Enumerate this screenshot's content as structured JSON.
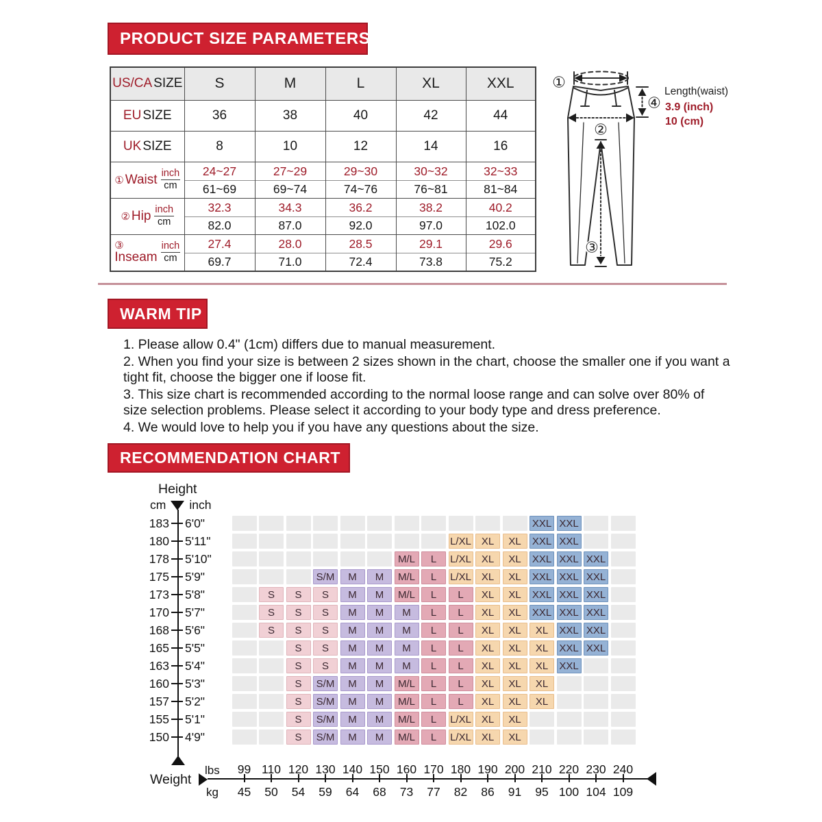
{
  "colors": {
    "banner_red": "#ce2130",
    "banner_border": "#a21623",
    "accent_red": "#9e1b28",
    "header_bg": "#e9e9e9",
    "empty_cell": "#eaeaea",
    "divider": "#c48f98"
  },
  "section1": {
    "title": "PRODUCT SIZE PARAMETERS"
  },
  "size_table": {
    "header": {
      "prefix": "US/CA",
      "word": "SIZE",
      "columns": [
        "S",
        "M",
        "L",
        "XL",
        "XXL"
      ]
    },
    "simple_rows": [
      {
        "prefix": "EU",
        "word": "SIZE",
        "values": [
          "36",
          "38",
          "40",
          "42",
          "44"
        ]
      },
      {
        "prefix": "UK",
        "word": "SIZE",
        "values": [
          "8",
          "10",
          "12",
          "14",
          "16"
        ]
      }
    ],
    "measure_rows": [
      {
        "num": "①",
        "name": "Waist",
        "stacked": false,
        "unit_top": "inch",
        "unit_bottom": "cm",
        "inch": [
          "24~27",
          "27~29",
          "29~30",
          "30~32",
          "32~33"
        ],
        "cm": [
          "61~69",
          "69~74",
          "74~76",
          "76~81",
          "81~84"
        ]
      },
      {
        "num": "②",
        "name": "Hip",
        "stacked": false,
        "unit_top": "inch",
        "unit_bottom": "cm",
        "inch": [
          "32.3",
          "34.3",
          "36.2",
          "38.2",
          "40.2"
        ],
        "cm": [
          "82.0",
          "87.0",
          "92.0",
          "97.0",
          "102.0"
        ]
      },
      {
        "num": "③",
        "name": "Inseam",
        "stacked": true,
        "unit_top": "inch",
        "unit_bottom": "cm",
        "inch": [
          "27.4",
          "28.0",
          "28.5",
          "29.1",
          "29.6"
        ],
        "cm": [
          "69.7",
          "71.0",
          "72.4",
          "73.8",
          "75.2"
        ]
      }
    ]
  },
  "diagram": {
    "markers": [
      "①",
      "②",
      "③",
      "④"
    ],
    "legend": {
      "title": "Length(waist)",
      "inch": "3.9 (inch)",
      "cm": "10 (cm)"
    }
  },
  "warm_tip": {
    "title": "WARM TIP",
    "items": [
      "1. Please allow 0.4\" (1cm) differs due to manual measurement.",
      "2. When you find your size is between 2 sizes shown in the chart, choose the smaller one if you want a tight fit, choose the bigger one if loose fit.",
      "3. This size chart is recommended according to the normal loose range and can solve over 80% of size selection problems. Please select it according to your body type and dress preference.",
      "4. We would love to help you if you have any questions about the size."
    ]
  },
  "recommendation": {
    "title": "RECOMMENDATION CHART",
    "height_label": "Height",
    "cm_label": "cm",
    "inch_label": "inch",
    "weight_label": "Weight",
    "lbs_label": "lbs",
    "kg_label": "kg",
    "weights_lbs": [
      "99",
      "110",
      "120",
      "130",
      "140",
      "150",
      "160",
      "170",
      "180",
      "190",
      "200",
      "210",
      "220",
      "230",
      "240"
    ],
    "weights_kg": [
      "45",
      "50",
      "54",
      "59",
      "64",
      "68",
      "73",
      "77",
      "82",
      "86",
      "91",
      "95",
      "100",
      "104",
      "109"
    ],
    "size_colors": {
      "S": {
        "bg": "#f1d0d5",
        "border": "#e0b4ba"
      },
      "S/M": {
        "bg": "#c6bbdf",
        "border": "#a898cc"
      },
      "M": {
        "bg": "#c6bbdf",
        "border": "#a898cc"
      },
      "M/L": {
        "bg": "#e3a9b5",
        "border": "#cf8c9b"
      },
      "L": {
        "bg": "#e3a9b5",
        "border": "#cf8c9b"
      },
      "L/XL": {
        "bg": "#f6d7ae",
        "border": "#e9bd8c"
      },
      "XL": {
        "bg": "#f6d7ae",
        "border": "#e9bd8c"
      },
      "XXL": {
        "bg": "#95b2d5",
        "border": "#6e92bc"
      }
    },
    "rows": [
      {
        "cm": "183",
        "inch": "6'0\"",
        "cells": {
          "210": "XXL",
          "220": "XXL"
        }
      },
      {
        "cm": "180",
        "inch": "5'11\"",
        "cells": {
          "180": "L/XL",
          "190": "XL",
          "200": "XL",
          "210": "XXL",
          "220": "XXL"
        }
      },
      {
        "cm": "178",
        "inch": "5'10\"",
        "cells": {
          "160": "M/L",
          "170": "L",
          "180": "L/XL",
          "190": "XL",
          "200": "XL",
          "210": "XXL",
          "220": "XXL",
          "230": "XXL"
        }
      },
      {
        "cm": "175",
        "inch": "5'9\"",
        "cells": {
          "130": "S/M",
          "140": "M",
          "150": "M",
          "160": "M/L",
          "170": "L",
          "180": "L/XL",
          "190": "XL",
          "200": "XL",
          "210": "XXL",
          "220": "XXL",
          "230": "XXL"
        }
      },
      {
        "cm": "173",
        "inch": "5'8\"",
        "cells": {
          "110": "S",
          "120": "S",
          "130": "S",
          "140": "M",
          "150": "M",
          "160": "M/L",
          "170": "L",
          "180": "L",
          "190": "XL",
          "200": "XL",
          "210": "XXL",
          "220": "XXL",
          "230": "XXL"
        }
      },
      {
        "cm": "170",
        "inch": "5'7\"",
        "cells": {
          "110": "S",
          "120": "S",
          "130": "S",
          "140": "M",
          "150": "M",
          "160": "M",
          "170": "L",
          "180": "L",
          "190": "XL",
          "200": "XL",
          "210": "XXL",
          "220": "XXL",
          "230": "XXL"
        }
      },
      {
        "cm": "168",
        "inch": "5'6\"",
        "cells": {
          "110": "S",
          "120": "S",
          "130": "S",
          "140": "M",
          "150": "M",
          "160": "M",
          "170": "L",
          "180": "L",
          "190": "XL",
          "200": "XL",
          "210": "XL",
          "220": "XXL",
          "230": "XXL"
        }
      },
      {
        "cm": "165",
        "inch": "5'5\"",
        "cells": {
          "120": "S",
          "130": "S",
          "140": "M",
          "150": "M",
          "160": "M",
          "170": "L",
          "180": "L",
          "190": "XL",
          "200": "XL",
          "210": "XL",
          "220": "XXL",
          "230": "XXL"
        }
      },
      {
        "cm": "163",
        "inch": "5'4\"",
        "cells": {
          "120": "S",
          "130": "S",
          "140": "M",
          "150": "M",
          "160": "M",
          "170": "L",
          "180": "L",
          "190": "XL",
          "200": "XL",
          "210": "XL",
          "220": "XXL"
        }
      },
      {
        "cm": "160",
        "inch": "5'3\"",
        "cells": {
          "120": "S",
          "130": "S/M",
          "140": "M",
          "150": "M",
          "160": "M/L",
          "170": "L",
          "180": "L",
          "190": "XL",
          "200": "XL",
          "210": "XL"
        }
      },
      {
        "cm": "157",
        "inch": "5'2\"",
        "cells": {
          "120": "S",
          "130": "S/M",
          "140": "M",
          "150": "M",
          "160": "M/L",
          "170": "L",
          "180": "L",
          "190": "XL",
          "200": "XL",
          "210": "XL"
        }
      },
      {
        "cm": "155",
        "inch": "5'1\"",
        "cells": {
          "120": "S",
          "130": "S/M",
          "140": "M",
          "150": "M",
          "160": "M/L",
          "170": "L",
          "180": "L/XL",
          "190": "XL",
          "200": "XL"
        }
      },
      {
        "cm": "150",
        "inch": "4'9\"",
        "cells": {
          "120": "S",
          "130": "S/M",
          "140": "M",
          "150": "M",
          "160": "M/L",
          "170": "L",
          "180": "L/XL",
          "190": "XL",
          "200": "XL"
        }
      }
    ]
  },
  "chart_data": [
    {
      "type": "table",
      "title": "PRODUCT SIZE PARAMETERS",
      "columns": [
        "US/CA SIZE",
        "S",
        "M",
        "L",
        "XL",
        "XXL"
      ],
      "rows": [
        [
          "EU SIZE",
          "36",
          "38",
          "40",
          "42",
          "44"
        ],
        [
          "UK SIZE",
          "8",
          "10",
          "12",
          "14",
          "16"
        ],
        [
          "Waist (inch)",
          "24~27",
          "27~29",
          "29~30",
          "30~32",
          "32~33"
        ],
        [
          "Waist (cm)",
          "61~69",
          "69~74",
          "74~76",
          "76~81",
          "81~84"
        ],
        [
          "Hip (inch)",
          "32.3",
          "34.3",
          "36.2",
          "38.2",
          "40.2"
        ],
        [
          "Hip (cm)",
          "82.0",
          "87.0",
          "92.0",
          "97.0",
          "102.0"
        ],
        [
          "Inseam (inch)",
          "27.4",
          "28.0",
          "28.5",
          "29.1",
          "29.6"
        ],
        [
          "Inseam (cm)",
          "69.7",
          "71.0",
          "72.4",
          "73.8",
          "75.2"
        ],
        [
          "Length(waist)",
          "3.9 (inch)",
          "10 (cm)",
          "",
          "",
          ""
        ]
      ]
    },
    {
      "type": "heatmap",
      "title": "RECOMMENDATION CHART",
      "xlabel": "Weight",
      "x_units": [
        "lbs",
        "kg"
      ],
      "x_lbs": [
        99,
        110,
        120,
        130,
        140,
        150,
        160,
        170,
        180,
        190,
        200,
        210,
        220,
        230,
        240
      ],
      "x_kg": [
        45,
        50,
        54,
        59,
        64,
        68,
        73,
        77,
        82,
        86,
        91,
        95,
        100,
        104,
        109
      ],
      "ylabel": "Height",
      "y_units": [
        "cm",
        "inch"
      ],
      "y_cm": [
        183,
        180,
        178,
        175,
        173,
        170,
        168,
        165,
        163,
        160,
        157,
        155,
        150
      ],
      "y_inch": [
        "6'0\"",
        "5'11\"",
        "5'10\"",
        "5'9\"",
        "5'8\"",
        "5'7\"",
        "5'6\"",
        "5'5\"",
        "5'4\"",
        "5'3\"",
        "5'2\"",
        "5'1\"",
        "4'9\""
      ],
      "legend_sizes": [
        "S",
        "S/M",
        "M",
        "M/L",
        "L",
        "L/XL",
        "XL",
        "XXL"
      ],
      "values_by_height_cm": {
        "183": {
          "210": "XXL",
          "220": "XXL"
        },
        "180": {
          "180": "L/XL",
          "190": "XL",
          "200": "XL",
          "210": "XXL",
          "220": "XXL"
        },
        "178": {
          "160": "M/L",
          "170": "L",
          "180": "L/XL",
          "190": "XL",
          "200": "XL",
          "210": "XXL",
          "220": "XXL",
          "230": "XXL"
        },
        "175": {
          "130": "S/M",
          "140": "M",
          "150": "M",
          "160": "M/L",
          "170": "L",
          "180": "L/XL",
          "190": "XL",
          "200": "XL",
          "210": "XXL",
          "220": "XXL",
          "230": "XXL"
        },
        "173": {
          "110": "S",
          "120": "S",
          "130": "S",
          "140": "M",
          "150": "M",
          "160": "M/L",
          "170": "L",
          "180": "L",
          "190": "XL",
          "200": "XL",
          "210": "XXL",
          "220": "XXL",
          "230": "XXL"
        },
        "170": {
          "110": "S",
          "120": "S",
          "130": "S",
          "140": "M",
          "150": "M",
          "160": "M",
          "170": "L",
          "180": "L",
          "190": "XL",
          "200": "XL",
          "210": "XXL",
          "220": "XXL",
          "230": "XXL"
        },
        "168": {
          "110": "S",
          "120": "S",
          "130": "S",
          "140": "M",
          "150": "M",
          "160": "M",
          "170": "L",
          "180": "L",
          "190": "XL",
          "200": "XL",
          "210": "XL",
          "220": "XXL",
          "230": "XXL"
        },
        "165": {
          "120": "S",
          "130": "S",
          "140": "M",
          "150": "M",
          "160": "M",
          "170": "L",
          "180": "L",
          "190": "XL",
          "200": "XL",
          "210": "XL",
          "220": "XXL",
          "230": "XXL"
        },
        "163": {
          "120": "S",
          "130": "S",
          "140": "M",
          "150": "M",
          "160": "M",
          "170": "L",
          "180": "L",
          "190": "XL",
          "200": "XL",
          "210": "XL",
          "220": "XXL"
        },
        "160": {
          "120": "S",
          "130": "S/M",
          "140": "M",
          "150": "M",
          "160": "M/L",
          "170": "L",
          "180": "L",
          "190": "XL",
          "200": "XL",
          "210": "XL"
        },
        "157": {
          "120": "S",
          "130": "S/M",
          "140": "M",
          "150": "M",
          "160": "M/L",
          "170": "L",
          "180": "L",
          "190": "XL",
          "200": "XL",
          "210": "XL"
        },
        "155": {
          "120": "S",
          "130": "S/M",
          "140": "M",
          "150": "M",
          "160": "M/L",
          "170": "L",
          "180": "L/XL",
          "190": "XL",
          "200": "XL"
        },
        "150": {
          "120": "S",
          "130": "S/M",
          "140": "M",
          "150": "M",
          "160": "M/L",
          "170": "L",
          "180": "L/XL",
          "190": "XL",
          "200": "XL"
        }
      }
    }
  ]
}
